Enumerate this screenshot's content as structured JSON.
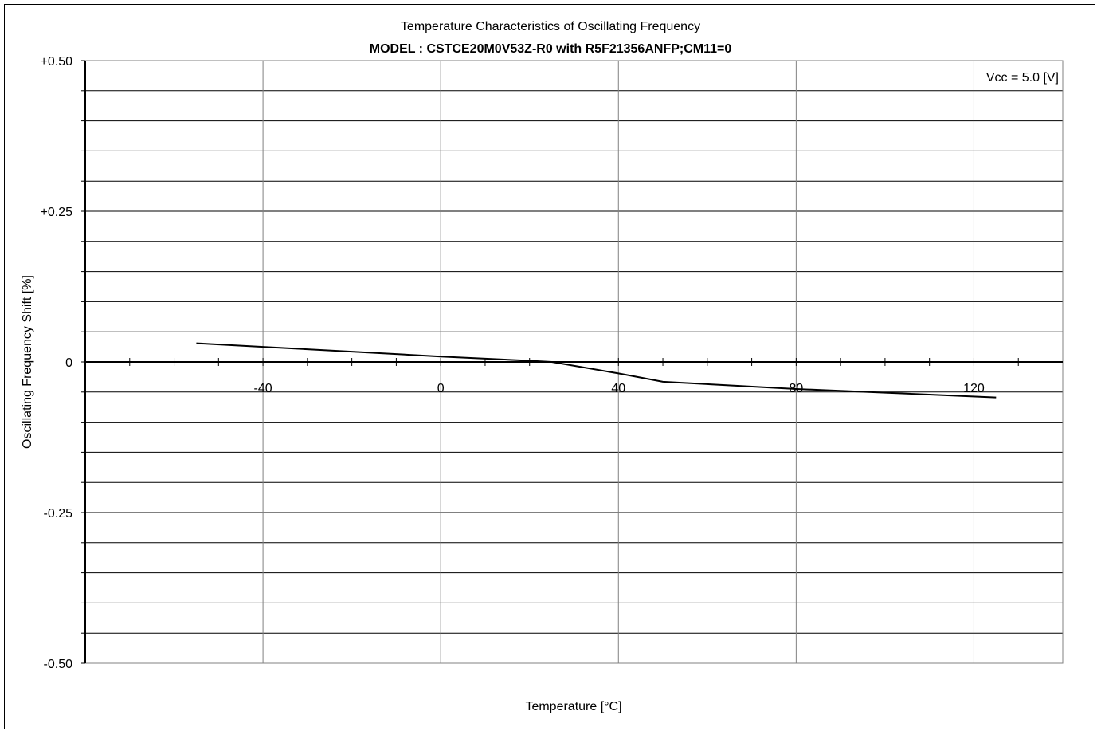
{
  "chart_data": {
    "type": "line",
    "title": "Temperature Characteristics of Oscillating Frequency",
    "subtitle": "MODEL : CSTCE20M0V53Z-R0 with R5F21356ANFP;CM11=0",
    "annotation": "Vcc = 5.0 [V]",
    "xlabel": "Temperature [°C]",
    "ylabel": "Oscillating Frequency Shift [%]",
    "xlim": [
      -80,
      140
    ],
    "ylim": [
      -0.5,
      0.5
    ],
    "x_ticks": [
      -40,
      0,
      40,
      80,
      120
    ],
    "x_tick_labels": [
      "-40",
      "0",
      "40",
      "80",
      "120"
    ],
    "y_ticks": [
      0.5,
      0.25,
      0,
      -0.25,
      -0.5
    ],
    "y_tick_labels": [
      "+0.50",
      "+0.25",
      "0",
      "-0.25",
      "-0.50"
    ],
    "grid": true,
    "series": [
      {
        "color": "#000000",
        "x": [
          -55,
          -40,
          -20,
          0,
          20,
          25,
          40,
          50,
          80,
          100,
          125
        ],
        "y": [
          0.031,
          0.025,
          0.017,
          0.009,
          0.002,
          0.0,
          -0.019,
          -0.033,
          -0.045,
          -0.051,
          -0.059
        ]
      }
    ]
  }
}
